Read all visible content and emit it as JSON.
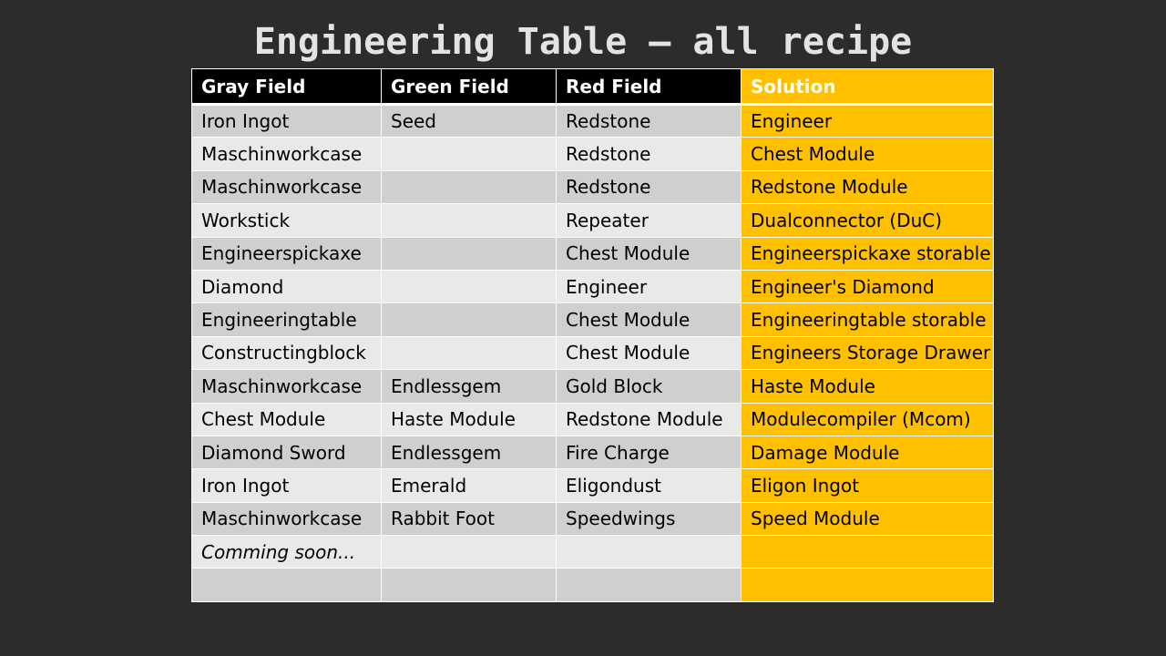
{
  "title": "Engineering Table – all recipe",
  "table": {
    "headers": {
      "gray": "Gray Field",
      "green": "Green Field",
      "red": "Red Field",
      "solution": "Solution"
    },
    "rows": [
      {
        "gray": "Iron Ingot",
        "green": "Seed",
        "red": "Redstone",
        "solution": "Engineer"
      },
      {
        "gray": "Maschinworkcase",
        "green": "",
        "red": "Redstone",
        "solution": "Chest Module"
      },
      {
        "gray": "Maschinworkcase",
        "green": "",
        "red": "Redstone",
        "solution": "Redstone Module"
      },
      {
        "gray": "Workstick",
        "green": "",
        "red": "Repeater",
        "solution": "Dualconnector (DuC)"
      },
      {
        "gray": "Engineerspickaxe",
        "green": "",
        "red": "Chest Module",
        "solution": "Engineerspickaxe storable"
      },
      {
        "gray": "Diamond",
        "green": "",
        "red": "Engineer",
        "solution": "Engineer's Diamond"
      },
      {
        "gray": "Engineeringtable",
        "green": "",
        "red": "Chest Module",
        "solution": "Engineeringtable storable"
      },
      {
        "gray": "Constructingblock",
        "green": "",
        "red": "Chest Module",
        "solution": "Engineers Storage Drawer"
      },
      {
        "gray": "Maschinworkcase",
        "green": "Endlessgem",
        "red": "Gold Block",
        "solution": "Haste Module"
      },
      {
        "gray": "Chest Module",
        "green": "Haste Module",
        "red": "Redstone Module",
        "solution": "Modulecompiler (Mcom)"
      },
      {
        "gray": "Diamond Sword",
        "green": "Endlessgem",
        "red": "Fire Charge",
        "solution": "Damage Module"
      },
      {
        "gray": "Iron Ingot",
        "green": "Emerald",
        "red": "Eligondust",
        "solution": "Eligon Ingot"
      },
      {
        "gray": "Maschinworkcase",
        "green": "Rabbit Foot",
        "red": "Speedwings",
        "solution": "Speed Module"
      },
      {
        "gray": "Comming soon...",
        "green": "",
        "red": "",
        "solution": ""
      },
      {
        "gray": "",
        "green": "",
        "red": "",
        "solution": ""
      }
    ]
  },
  "colors": {
    "background": "#2c2c2c",
    "header_black": "#000000",
    "solution_accent": "#ffc000",
    "row_dark": "#cfcfcf",
    "row_light": "#e9e9e9"
  }
}
